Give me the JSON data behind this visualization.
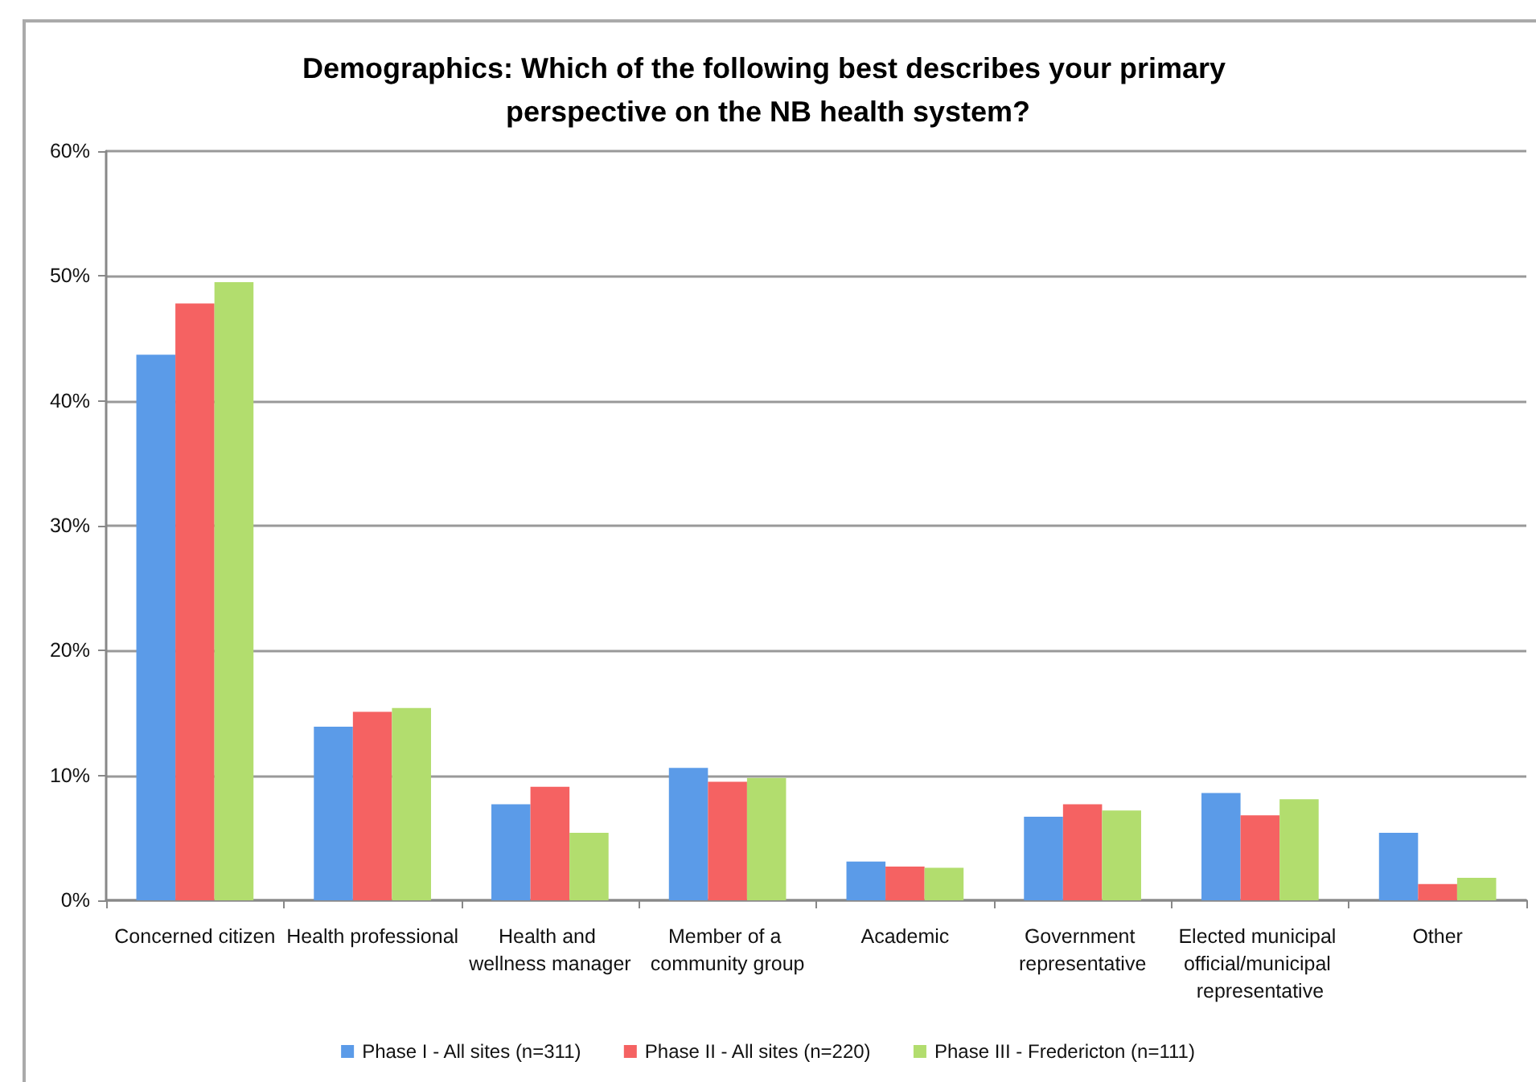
{
  "chart_data": {
    "type": "bar",
    "title": "Demographics: Which of the following best describes your primary perspective on the NB health system?",
    "categories": [
      "Concerned citizen",
      "Health professional",
      "Health and wellness manager",
      "Member of a community group",
      "Academic",
      "Government representative",
      "Elected municipal official/municipal representative",
      "Other"
    ],
    "series": [
      {
        "name": "Phase I - All sites (n=311)",
        "color": "#5b9be8",
        "values": [
          43.7,
          13.9,
          7.7,
          10.6,
          3.1,
          6.7,
          8.6,
          5.4
        ]
      },
      {
        "name": "Phase II - All sites (n=220)",
        "color": "#f56262",
        "values": [
          47.8,
          15.1,
          9.1,
          9.5,
          2.7,
          7.7,
          6.8,
          1.3
        ]
      },
      {
        "name": "Phase III - Fredericton (n=111)",
        "color": "#b2dd6e",
        "values": [
          49.5,
          15.4,
          5.4,
          9.8,
          2.6,
          7.2,
          8.1,
          1.8
        ]
      }
    ],
    "ylim": [
      0,
      60
    ],
    "yticks": [
      {
        "value": 0,
        "label": "0%"
      },
      {
        "value": 10,
        "label": "10%"
      },
      {
        "value": 20,
        "label": "20%"
      },
      {
        "value": 30,
        "label": "30%"
      },
      {
        "value": 40,
        "label": "40%"
      },
      {
        "value": 50,
        "label": "50%"
      },
      {
        "value": 60,
        "label": "60%"
      }
    ],
    "grid": "y",
    "legend": "bottom"
  }
}
